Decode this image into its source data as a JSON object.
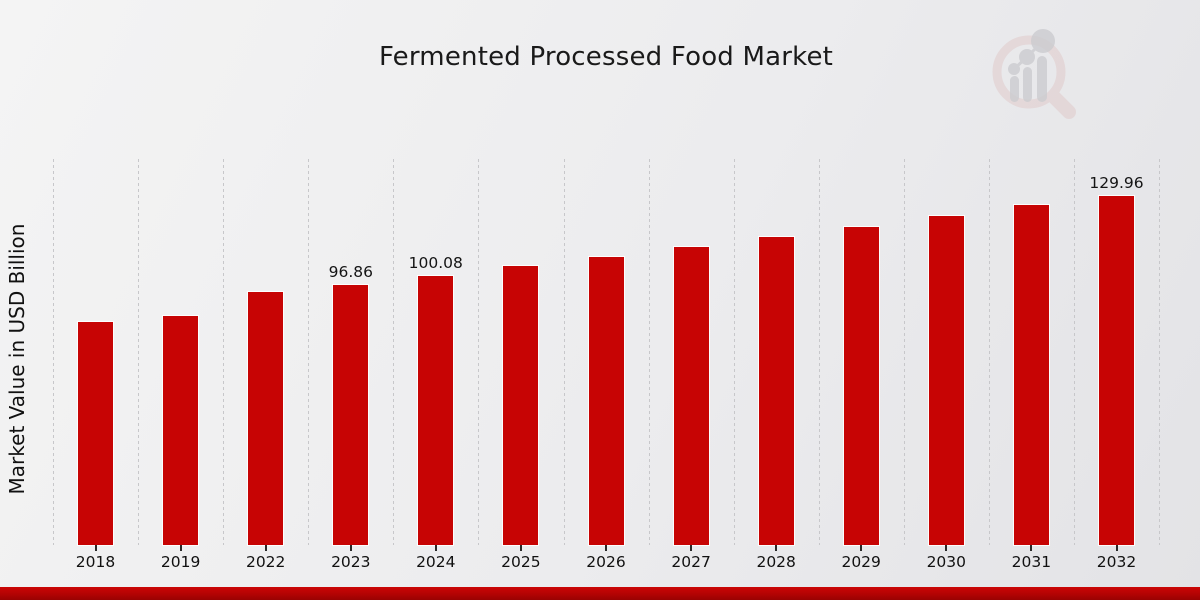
{
  "page": {
    "watermark_icon": "mrfr-magnifier-bar-chart-logo",
    "accent_red": "#c70404",
    "footer_bar_color": "#b30303",
    "background_gray": "#ececee"
  },
  "chart_data": {
    "type": "bar",
    "title": "Fermented Processed Food Market",
    "xlabel": "",
    "ylabel": "Market Value in USD Billion",
    "categories": [
      "2018",
      "2019",
      "2022",
      "2023",
      "2024",
      "2025",
      "2026",
      "2027",
      "2028",
      "2029",
      "2030",
      "2031",
      "2032"
    ],
    "values": [
      83.1,
      85.3,
      94.3,
      96.86,
      100.08,
      103.9,
      107.3,
      111.0,
      114.8,
      118.5,
      122.6,
      126.7,
      129.96
    ],
    "bar_labels": [
      "",
      "",
      "",
      "96.86",
      "100.08",
      "",
      "",
      "",
      "",
      "",
      "",
      "",
      "129.96"
    ],
    "ylim": [
      0,
      143.8
    ],
    "bar_color": "#c70404",
    "grid": "vertical-dashed",
    "legend": "none",
    "annotations": [
      "96.86",
      "100.08",
      "129.96"
    ]
  }
}
